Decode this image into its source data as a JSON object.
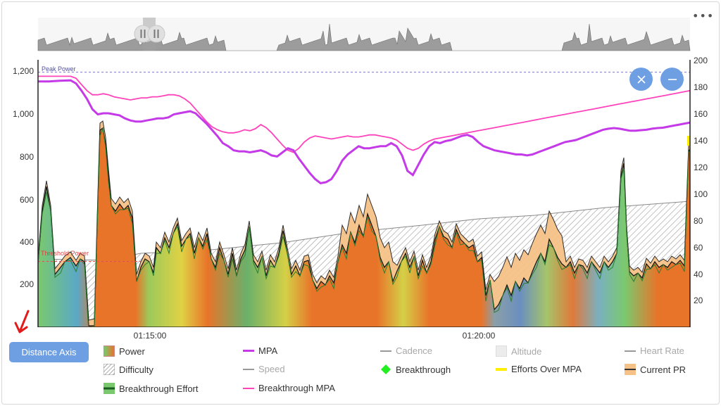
{
  "chart_data": {
    "type": "area",
    "x_ticks": [
      "01:15:00",
      "01:20:00"
    ],
    "y_left": {
      "min": 0,
      "max": 1300,
      "ticks": [
        200,
        400,
        600,
        800,
        "1,000",
        "1,200"
      ]
    },
    "y_right": {
      "min": 0,
      "max": 200,
      "ticks": [
        20,
        40,
        60,
        80,
        100,
        120,
        140,
        160,
        180,
        200
      ]
    },
    "annotations": {
      "peak_power": "Peak Power",
      "threshold_power": "Threshold Power"
    },
    "reference_lines": {
      "peak_power": 1240,
      "threshold_power": 320
    },
    "series": [
      {
        "name": "MPA",
        "color": "#c43ae8",
        "axis": "left",
        "x": [
          0,
          10,
          20,
          30,
          35,
          40,
          45,
          50,
          55,
          60,
          65,
          70,
          75,
          80,
          85,
          90,
          95,
          100,
          105,
          110,
          115,
          120,
          125,
          130,
          135,
          140,
          145,
          150,
          155,
          160,
          165,
          170,
          175,
          180,
          185,
          190,
          195,
          200,
          205,
          210,
          215,
          220,
          225,
          230,
          235,
          240,
          245,
          250,
          255,
          260,
          265,
          270,
          275,
          280,
          285,
          290,
          295,
          300,
          305,
          310,
          315,
          320,
          325,
          330,
          335,
          340,
          345,
          350,
          355,
          360,
          365,
          370,
          375,
          380,
          385,
          390,
          395,
          400,
          405,
          410,
          415,
          420,
          425,
          430,
          435,
          440,
          445,
          450,
          455,
          460,
          465,
          470,
          475,
          480,
          485,
          490,
          495,
          500,
          505,
          510,
          515,
          520,
          525,
          530,
          535,
          540,
          545,
          550,
          555,
          560,
          565,
          570,
          575,
          580,
          585,
          590,
          595,
          600
        ],
        "y": [
          1195,
          1195,
          1198,
          1200,
          1185,
          1150,
          1110,
          1060,
          1035,
          1040,
          1040,
          1035,
          1030,
          1015,
          1005,
          1000,
          1000,
          1005,
          1010,
          1015,
          1015,
          1020,
          1035,
          1040,
          1045,
          1050,
          1040,
          1015,
          990,
          960,
          930,
          895,
          880,
          860,
          855,
          855,
          850,
          855,
          860,
          850,
          835,
          830,
          850,
          870,
          860,
          820,
          785,
          750,
          720,
          700,
          705,
          720,
          760,
          810,
          840,
          860,
          880,
          870,
          870,
          875,
          880,
          880,
          895,
          880,
          835,
          760,
          740,
          790,
          840,
          880,
          900,
          895,
          905,
          910,
          920,
          930,
          935,
          925,
          900,
          880,
          870,
          860,
          855,
          850,
          845,
          840,
          840,
          835,
          840,
          850,
          860,
          870,
          880,
          890,
          900,
          905,
          910,
          920,
          930,
          940,
          950,
          960,
          965,
          968,
          965,
          960,
          955,
          955,
          958,
          960,
          965,
          968,
          970,
          975,
          980,
          985,
          990,
          995
        ]
      },
      {
        "name": "Breakthrough MPA",
        "color": "#ff44bb",
        "axis": "left",
        "x": [
          0,
          10,
          20,
          30,
          35,
          40,
          45,
          50,
          55,
          60,
          65,
          70,
          75,
          80,
          85,
          90,
          95,
          100,
          105,
          110,
          115,
          120,
          125,
          130,
          135,
          140,
          145,
          150,
          155,
          160,
          165,
          170,
          175,
          180,
          185,
          190,
          195,
          200,
          205,
          210,
          215,
          220,
          225,
          230,
          235,
          240,
          245,
          250,
          255,
          260,
          265,
          270,
          275,
          280,
          285,
          290,
          295,
          300,
          305,
          310,
          315,
          320,
          325,
          330,
          335,
          340,
          345,
          350,
          355,
          360,
          365,
          370,
          375,
          380,
          385,
          390,
          395,
          400,
          405,
          410,
          415,
          420,
          425,
          430,
          435,
          440,
          445,
          450,
          455,
          460,
          465,
          470,
          475,
          480,
          485,
          490,
          495,
          500,
          505,
          510,
          515,
          520,
          525,
          530,
          535,
          540,
          545,
          550,
          555,
          560,
          565,
          570,
          575,
          580,
          585,
          590,
          595,
          600
        ],
        "y": [
          1220,
          1220,
          1220,
          1220,
          1210,
          1180,
          1150,
          1130,
          1130,
          1135,
          1130,
          1120,
          1115,
          1110,
          1105,
          1110,
          1115,
          1115,
          1120,
          1120,
          1125,
          1130,
          1130,
          1125,
          1110,
          1090,
          1060,
          1030,
          1000,
          975,
          960,
          950,
          945,
          945,
          950,
          960,
          955,
          965,
          985,
          970,
          945,
          915,
          885,
          860,
          850,
          870,
          900,
          920,
          930,
          925,
          920,
          915,
          920,
          925,
          930,
          925,
          925,
          930,
          935,
          935,
          930,
          925,
          920,
          910,
          890,
          870,
          860,
          870,
          890,
          905,
          915,
          920,
          925,
          930,
          935,
          940,
          945,
          950,
          955,
          960,
          965,
          970,
          975,
          980,
          985,
          990,
          995,
          1000,
          1005,
          1010,
          1015,
          1020,
          1025,
          1030,
          1035,
          1040,
          1045,
          1050,
          1055,
          1060,
          1065,
          1070,
          1075,
          1080,
          1085,
          1090,
          1095,
          1100,
          1105,
          1110,
          1115,
          1120,
          1125,
          1130,
          1135,
          1140,
          1145,
          1150
        ]
      }
    ],
    "legend": [
      {
        "label": "Power",
        "state": "on"
      },
      {
        "label": "MPA",
        "state": "on"
      },
      {
        "label": "Cadence",
        "state": "off"
      },
      {
        "label": "Altitude",
        "state": "off"
      },
      {
        "label": "Heart Rate",
        "state": "off"
      },
      {
        "label": "Difficulty",
        "state": "on"
      },
      {
        "label": "Speed",
        "state": "off"
      },
      {
        "label": "Breakthrough",
        "state": "on"
      },
      {
        "label": "Efforts Over MPA",
        "state": "on"
      },
      {
        "label": "Current PR",
        "state": "on"
      },
      {
        "label": "Breakthrough Effort",
        "state": "on"
      },
      {
        "label": "Breakthrough MPA",
        "state": "on"
      }
    ],
    "legend_position": "bottom"
  },
  "controls": {
    "axis_button_label": "Distance Axis",
    "more_icon": "more-horizontal-icon",
    "close_icon": "close-icon",
    "zoom_out_icon": "minus-icon",
    "pause_icon": "pause-icon"
  },
  "colors": {
    "mpa": "#c43ae8",
    "breakthrough_mpa": "#ff44bb",
    "power_orange": "#e8742a",
    "current_pr": "#f6c187",
    "breakthrough_effort": "#3fa34d",
    "efforts_over_mpa": "#ffee00",
    "button": "#6e9fe3"
  }
}
